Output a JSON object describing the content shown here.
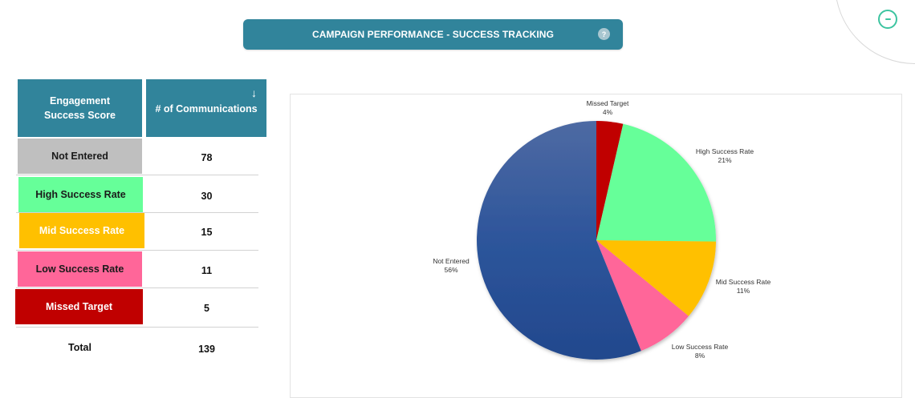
{
  "header": {
    "title": "CAMPAIGN PERFORMANCE - SUCCESS TRACKING",
    "help_icon": "?",
    "collapse_icon": "minus-circle-icon"
  },
  "table": {
    "columns": [
      "Engagement Success Score",
      "# of Communications"
    ],
    "sort_icon": "↓",
    "rows": [
      {
        "label": "Not Entered",
        "value": "78",
        "color": "#bfbfbf",
        "text_color": "#1a1a1a"
      },
      {
        "label": "High Success Rate",
        "value": "30",
        "color": "#66ff99",
        "text_color": "#1a1a1a"
      },
      {
        "label": "Mid Success Rate",
        "value": "15",
        "color": "#ffc000",
        "text_color": "#ffffff"
      },
      {
        "label": "Low Success Rate",
        "value": "11",
        "color": "#ff6699",
        "text_color": "#1a1a1a"
      },
      {
        "label": "Missed Target",
        "value": "5",
        "color": "#c00000",
        "text_color": "#ffffff"
      }
    ],
    "total": {
      "label": "Total",
      "value": "139"
    }
  },
  "chart_data": {
    "type": "pie",
    "title": "",
    "start_angle_deg": 0,
    "direction": "clockwise",
    "categories": [
      "Missed Target",
      "High Success Rate",
      "Mid Success Rate",
      "Low Success Rate",
      "Not Entered"
    ],
    "values": [
      5,
      30,
      15,
      11,
      78
    ],
    "percent_labels": [
      "4%",
      "21%",
      "11%",
      "8%",
      "56%"
    ],
    "colors": [
      "#c00000",
      "#66ff99",
      "#ffc000",
      "#ff6699",
      "#2f559a"
    ],
    "legend": "none",
    "data_labels": "category name and percentage, outside end"
  }
}
